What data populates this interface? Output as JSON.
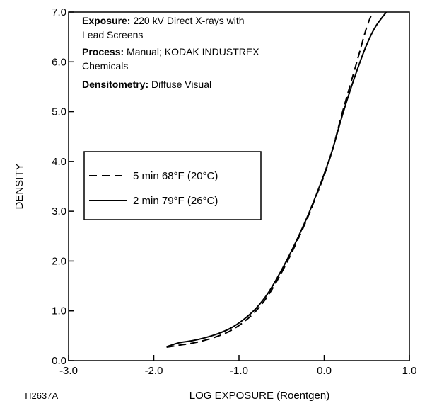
{
  "chart_data": {
    "type": "line",
    "figure_id": "TI2637A",
    "xlabel": "LOG EXPOSURE (Roentgen)",
    "ylabel": "DENSITY",
    "xlim": [
      -3.0,
      1.0
    ],
    "ylim": [
      0.0,
      7.0
    ],
    "x_ticks": [
      -3.0,
      -2.0,
      -1.0,
      0.0,
      1.0
    ],
    "x_tick_labels": [
      "-3.0",
      "-2.0",
      "-1.0",
      "0.0",
      "1.0"
    ],
    "y_ticks": [
      0.0,
      1.0,
      2.0,
      3.0,
      4.0,
      5.0,
      6.0,
      7.0
    ],
    "y_tick_labels": [
      "0.0",
      "1.0",
      "2.0",
      "3.0",
      "4.0",
      "5.0",
      "6.0",
      "7.0"
    ],
    "grid": false,
    "legend_position": "middle-left",
    "annotations": [
      {
        "bold": "Exposure:",
        "text": " 220 kV Direct X-rays with"
      },
      {
        "bold": "",
        "text": "Lead Screens"
      },
      {
        "bold": "Process:",
        "text": " Manual; KODAK INDUSTREX"
      },
      {
        "bold": "",
        "text": "Chemicals"
      },
      {
        "bold": "Densitometry:",
        "text": " Diffuse Visual"
      }
    ],
    "series": [
      {
        "name": "5 min 68°F (20°C)",
        "style": "dashed",
        "color": "#000000",
        "x": [
          -1.85,
          -1.7,
          -1.55,
          -1.4,
          -1.25,
          -1.1,
          -0.95,
          -0.8,
          -0.65,
          -0.5,
          -0.35,
          -0.2,
          -0.1,
          0.0,
          0.1,
          0.2,
          0.3,
          0.4,
          0.5,
          0.57
        ],
        "y": [
          0.27,
          0.31,
          0.35,
          0.41,
          0.49,
          0.6,
          0.77,
          1.0,
          1.33,
          1.77,
          2.28,
          2.85,
          3.28,
          3.72,
          4.25,
          4.9,
          5.5,
          6.1,
          6.7,
          7.0
        ]
      },
      {
        "name": "2 min 79°F (26°C)",
        "style": "solid",
        "color": "#000000",
        "x": [
          -1.85,
          -1.7,
          -1.55,
          -1.4,
          -1.25,
          -1.1,
          -0.95,
          -0.8,
          -0.65,
          -0.5,
          -0.35,
          -0.2,
          -0.1,
          0.0,
          0.1,
          0.2,
          0.3,
          0.4,
          0.5,
          0.6,
          0.73
        ],
        "y": [
          0.28,
          0.36,
          0.4,
          0.46,
          0.54,
          0.65,
          0.82,
          1.05,
          1.38,
          1.82,
          2.32,
          2.88,
          3.3,
          3.75,
          4.25,
          4.85,
          5.4,
          5.9,
          6.35,
          6.7,
          7.0
        ]
      }
    ]
  }
}
